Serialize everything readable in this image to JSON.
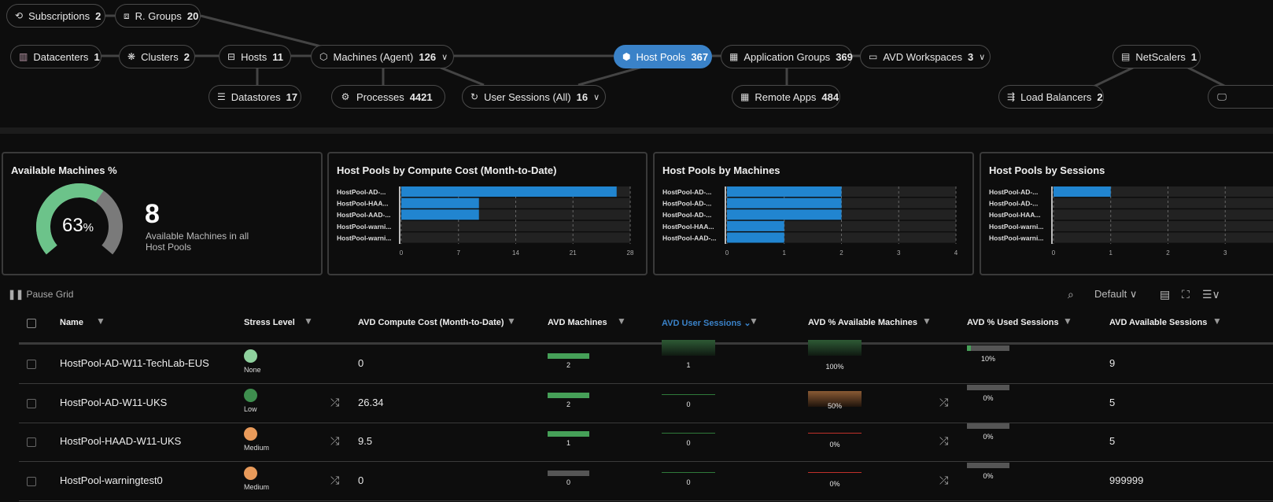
{
  "nav": {
    "subscriptions": {
      "label": "Subscriptions",
      "count": "2"
    },
    "rgroups": {
      "label": "R. Groups",
      "count": "20"
    },
    "datacenters": {
      "label": "Datacenters",
      "count": "1"
    },
    "clusters": {
      "label": "Clusters",
      "count": "2"
    },
    "hosts": {
      "label": "Hosts",
      "count": "11"
    },
    "machines": {
      "label": "Machines (Agent)",
      "count": "126"
    },
    "datastores": {
      "label": "Datastores",
      "count": "17"
    },
    "processes": {
      "label": "Processes",
      "count": "4421"
    },
    "usersessions": {
      "label": "User Sessions (All)",
      "count": "16"
    },
    "hostpools": {
      "label": "Host Pools",
      "count": "367"
    },
    "appgroups": {
      "label": "Application Groups",
      "count": "369"
    },
    "workspaces": {
      "label": "AVD Workspaces",
      "count": "3"
    },
    "remoteapps": {
      "label": "Remote Apps",
      "count": "484"
    },
    "netscalers": {
      "label": "NetScalers",
      "count": "1"
    },
    "loadbalancers": {
      "label": "Load Balancers",
      "count": "2"
    },
    "active_color": "#3a82c8"
  },
  "kpi": {
    "title": "Available Machines %",
    "percent": 63,
    "percent_label": "63",
    "percent_sign": "%",
    "value": "8",
    "subtitle": "Available Machines in all Host Pools",
    "colors": {
      "available": "#6cc38a",
      "unavailable": "#7a7a7a"
    }
  },
  "chart_data": [
    {
      "type": "bar",
      "orientation": "horizontal",
      "title": "Host Pools by Compute Cost (Month-to-Date)",
      "categories": [
        "HostPool-AD-...",
        "HostPool-HAA...",
        "HostPool-AAD-...",
        "HostPool-warni...",
        "HostPool-warni..."
      ],
      "values": [
        26.34,
        9.5,
        9.5,
        0,
        0
      ],
      "xlim": [
        0,
        28
      ],
      "xticks": [
        "0",
        "7",
        "14",
        "21",
        "28"
      ],
      "color": "#2185d0",
      "grid": true
    },
    {
      "type": "bar",
      "orientation": "horizontal",
      "title": "Host Pools by Machines",
      "categories": [
        "HostPool-AD-...",
        "HostPool-AD-...",
        "HostPool-AD-...",
        "HostPool-HAA...",
        "HostPool-AAD-..."
      ],
      "values": [
        2,
        2,
        2,
        1,
        1
      ],
      "xlim": [
        0,
        4
      ],
      "xticks": [
        "0",
        "1",
        "2",
        "3",
        "4"
      ],
      "color": "#2185d0",
      "grid": true
    },
    {
      "type": "bar",
      "orientation": "horizontal",
      "title": "Host Pools by Sessions",
      "categories": [
        "HostPool-AD-...",
        "HostPool-AD-...",
        "HostPool-HAA...",
        "HostPool-warni...",
        "HostPool-warni..."
      ],
      "values": [
        1,
        0,
        0,
        0,
        0
      ],
      "xlim": [
        0,
        4
      ],
      "xticks": [
        "0",
        "1",
        "2",
        "3"
      ],
      "color": "#2185d0",
      "grid": true
    }
  ],
  "toolbar": {
    "pause": "Pause Grid",
    "view": "Default"
  },
  "table": {
    "columns": [
      "Name",
      "Stress Level",
      "AVD Compute Cost (Month-to-Date)",
      "AVD Machines",
      "AVD User Sessions",
      "AVD % Available Machines",
      "AVD % Used Sessions",
      "AVD Available Sessions"
    ],
    "sorted_column": "AVD User Sessions",
    "rows": [
      {
        "name": "HostPool-AD-W11-TechLab-EUS",
        "stress": "None",
        "stress_color": "#8fd19e",
        "cost": "0",
        "machines": "2",
        "machines_fill": 1,
        "sessions": "1",
        "sessions_fill": 1,
        "avail": "100%",
        "avail_level": "good",
        "used": "10%",
        "used_fill": 0.1,
        "avail_sessions": "9",
        "shuffle": false
      },
      {
        "name": "HostPool-AD-W11-UKS",
        "stress": "Low",
        "stress_color": "#3e8e4e",
        "cost": "26.34",
        "machines": "2",
        "machines_fill": 1,
        "sessions": "0",
        "sessions_fill": 0,
        "avail": "50%",
        "avail_level": "warn",
        "used": "0%",
        "used_fill": 0,
        "avail_sessions": "5",
        "shuffle": true
      },
      {
        "name": "HostPool-HAAD-W11-UKS",
        "stress": "Medium",
        "stress_color": "#e89a5a",
        "cost": "9.5",
        "machines": "1",
        "machines_fill": 1,
        "sessions": "0",
        "sessions_fill": 0,
        "avail": "0%",
        "avail_level": "bad",
        "used": "0%",
        "used_fill": 0,
        "avail_sessions": "5",
        "shuffle": true
      },
      {
        "name": "HostPool-warningtest0",
        "stress": "Medium",
        "stress_color": "#e89a5a",
        "cost": "0",
        "machines": "0",
        "machines_fill": 0,
        "sessions": "0",
        "sessions_fill": 0,
        "avail": "0%",
        "avail_level": "bad",
        "used": "0%",
        "used_fill": 0,
        "avail_sessions": "999999",
        "shuffle": true
      }
    ]
  }
}
